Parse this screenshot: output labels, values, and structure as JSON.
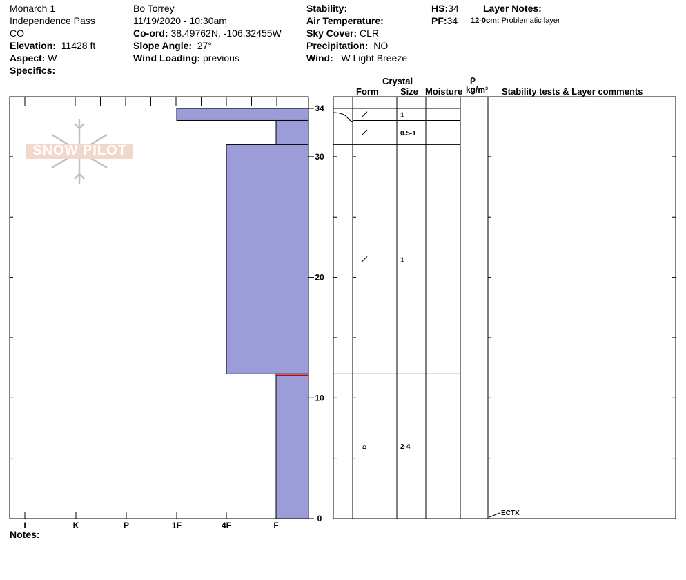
{
  "header": {
    "location": "Monarch 1",
    "area": "Independence Pass",
    "state": "CO",
    "elevation_label": "Elevation:",
    "elevation": "11428 ft",
    "aspect_label": "Aspect:",
    "aspect": "W",
    "specifics_label": "Specifics:",
    "observer": "Bo Torrey",
    "datetime": "11/19/2020 - 10:30am",
    "coord_label": "Co-ord:",
    "coord": "38.49762N, -106.32455W",
    "slope_label": "Slope Angle:",
    "slope": "27°",
    "wind_loading_label": "Wind Loading:",
    "wind_loading": "previous",
    "stability_label": "Stability:",
    "air_temp_label": "Air Temperature:",
    "sky_label": "Sky Cover:",
    "sky": "CLR",
    "precip_label": "Precipitation:",
    "precip": "NO",
    "wind_label": "Wind:",
    "wind": "W Light Breeze",
    "hs_label": "HS:",
    "hs": "34",
    "pf_label": "PF:",
    "pf": "34",
    "layer_notes_label": "Layer Notes:",
    "layer_note_range": "12-0cm:",
    "layer_note_text": "Problematic layer",
    "notes_label": "Notes:"
  },
  "columns": {
    "crystal": "Crystal",
    "form": "Form",
    "size": "Size",
    "moisture": "Moisture",
    "rho": "ρ",
    "density_unit": "kg/m³",
    "comments": "Stability tests & Layer comments"
  },
  "watermark": "SNOW PILOT",
  "colors": {
    "layer_fill": "#9c9cd9",
    "weak_layer": "#cc0000"
  },
  "chart_data": {
    "type": "bar",
    "orientation": "horizontal",
    "title": "",
    "x_categories": [
      "I",
      "K",
      "P",
      "1F",
      "4F",
      "F"
    ],
    "y_ticks": [
      0,
      10,
      20,
      30,
      34
    ],
    "ylim": [
      0,
      34
    ],
    "layers": [
      {
        "bottom": 33,
        "top": 34,
        "hardness": "1F",
        "form": "/",
        "size": "1"
      },
      {
        "bottom": 31,
        "top": 33,
        "hardness": "F",
        "form": "/",
        "size": "0.5-1"
      },
      {
        "bottom": 12,
        "top": 31,
        "hardness": "4F",
        "form": "/",
        "size": "1"
      },
      {
        "bottom": 0,
        "top": 12,
        "hardness": "F",
        "form": "⌂",
        "size": "2-4"
      }
    ],
    "weak_layer_depth": 12,
    "stability_tests": [
      {
        "height": 0,
        "label": "ECTX"
      }
    ]
  }
}
